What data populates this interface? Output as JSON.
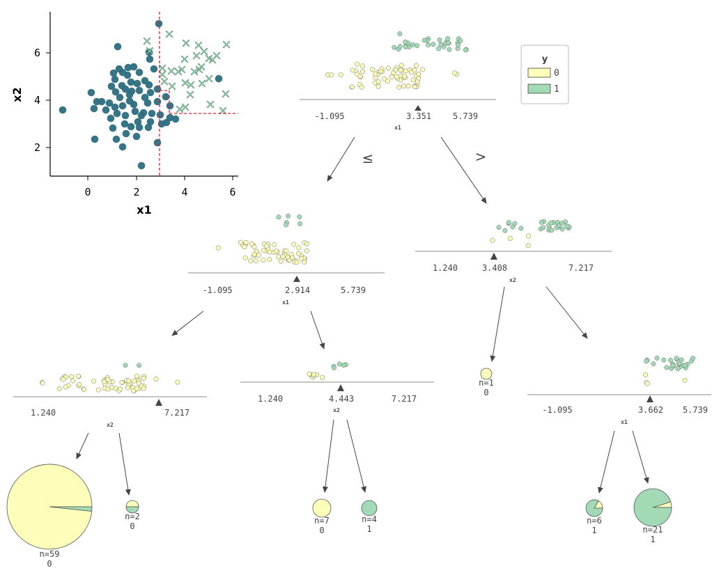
{
  "colors": {
    "class0": "#FEFEBB",
    "class1": "#a1dab4",
    "scatter_point": "#2c6e80",
    "scatter_x": "#a1dab4",
    "boundary": "#e8192c"
  },
  "legend": {
    "title": "y",
    "labels": [
      "0",
      "1"
    ]
  },
  "edge_labels": {
    "left": "≤",
    "right": ">"
  },
  "scatter": {
    "xlabel": "x1",
    "ylabel": "x2",
    "xticks": [
      "0",
      "2",
      "4",
      "6"
    ],
    "yticks": [
      "2",
      "4",
      "6"
    ]
  },
  "nodes": {
    "root": {
      "feature": "x1",
      "ticks": [
        "-1.095",
        "3.351",
        "5.739"
      ]
    },
    "n_l": {
      "feature": "x1",
      "ticks": [
        "-1.095",
        "2.914",
        "5.739"
      ]
    },
    "n_r": {
      "feature": "x2",
      "ticks": [
        "1.240",
        "3.408",
        "7.217"
      ]
    },
    "n_ll": {
      "feature": "x2",
      "ticks": [
        "1.240",
        "7.217"
      ]
    },
    "n_lr": {
      "feature": "x2",
      "ticks": [
        "1.240",
        "4.443",
        "7.217"
      ]
    },
    "n_rr": {
      "feature": "x1",
      "ticks": [
        "-1.095",
        "3.662",
        "5.739"
      ]
    }
  },
  "leaves": [
    {
      "id": "leaf_ll_l",
      "n": "n=59",
      "cls": "0",
      "class0": 58,
      "class1": 1
    },
    {
      "id": "leaf_ll_r",
      "n": "n=2",
      "cls": "0",
      "class0": 1,
      "class1": 1
    },
    {
      "id": "leaf_lr_l",
      "n": "n=7",
      "cls": "0",
      "class0": 7,
      "class1": 0
    },
    {
      "id": "leaf_lr_r",
      "n": "n=4",
      "cls": "1",
      "class0": 0,
      "class1": 4
    },
    {
      "id": "leaf_r_l",
      "n": "n=1",
      "cls": "0",
      "class0": 1,
      "class1": 0
    },
    {
      "id": "leaf_rr_l",
      "n": "n=6",
      "cls": "1",
      "class0": 1,
      "class1": 5
    },
    {
      "id": "leaf_rr_r",
      "n": "n=21",
      "cls": "1",
      "class0": 1,
      "class1": 20
    }
  ]
}
